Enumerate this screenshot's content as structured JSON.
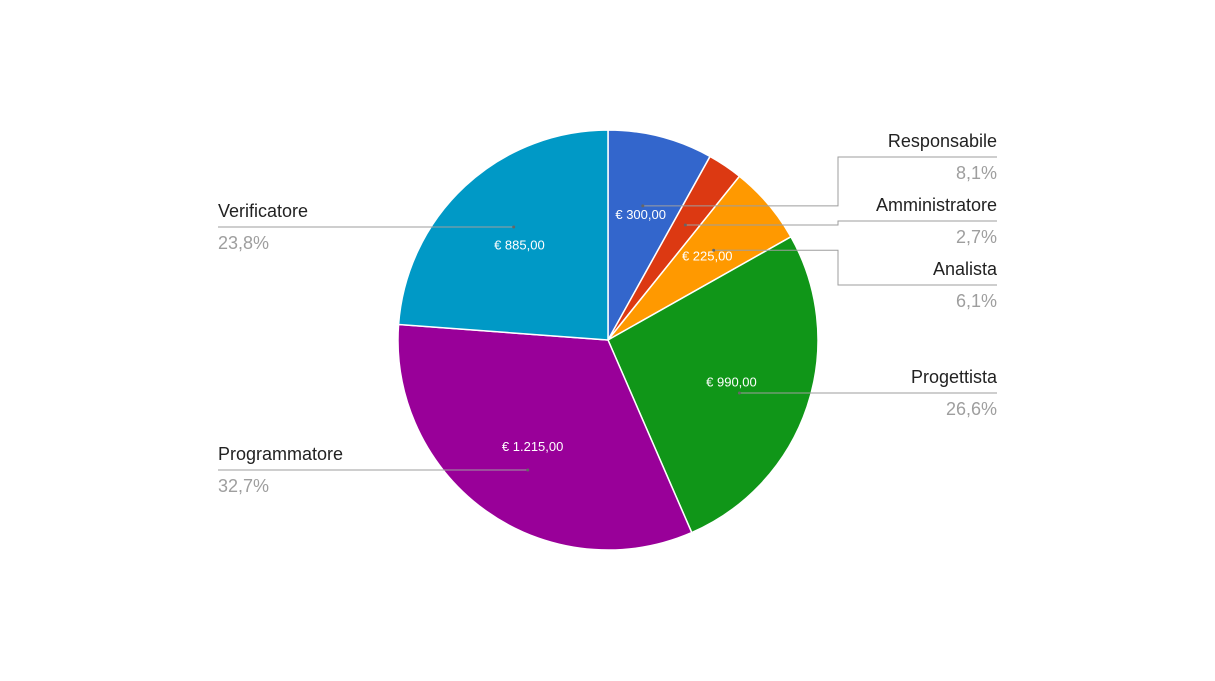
{
  "chart_data": {
    "type": "pie",
    "slices": [
      {
        "name": "Responsabile",
        "value": 300,
        "value_label": "€ 300,00",
        "percent_label": "8,1%",
        "color": "#3366cc"
      },
      {
        "name": "Amministratore",
        "value": 100,
        "value_label": "",
        "percent_label": "2,7%",
        "color": "#dc3912"
      },
      {
        "name": "Analista",
        "value": 225,
        "value_label": "€ 225,00",
        "percent_label": "6,1%",
        "color": "#ff9900"
      },
      {
        "name": "Progettista",
        "value": 990,
        "value_label": "€ 990,00",
        "percent_label": "26,6%",
        "color": "#109618"
      },
      {
        "name": "Programmatore",
        "value": 1215,
        "value_label": "€ 1.215,00",
        "percent_label": "32,7%",
        "color": "#990099"
      },
      {
        "name": "Verificatore",
        "value": 885,
        "value_label": "€ 885,00",
        "percent_label": "23,8%",
        "color": "#0099c6"
      }
    ]
  }
}
